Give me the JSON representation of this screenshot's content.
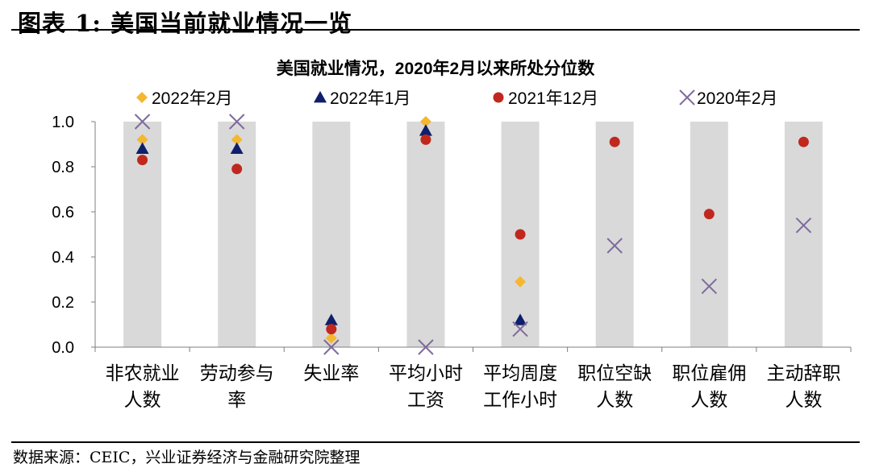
{
  "figure": {
    "title": "图表 1:  美国当前就业情况一览",
    "source": "数据来源：CEIC，兴业证券经济与金融研究院整理"
  },
  "chart_data": {
    "type": "scatter",
    "title": "美国就业情况，2020年2月以来所处分位数",
    "ylim": [
      0,
      1.0
    ],
    "yticks": [
      "1.0",
      "0.8",
      "0.6",
      "0.4",
      "0.2",
      "0.0"
    ],
    "ytick_values": [
      1.0,
      0.8,
      0.6,
      0.4,
      0.2,
      0.0
    ],
    "categories": [
      [
        "非农就业",
        "人数"
      ],
      [
        "劳动参与",
        "率"
      ],
      [
        "失业率"
      ],
      [
        "平均小时",
        "工资"
      ],
      [
        "平均周度",
        "工作小时"
      ],
      [
        "职位空缺",
        "人数"
      ],
      [
        "职位雇佣",
        "人数"
      ],
      [
        "主动辞职",
        "人数"
      ]
    ],
    "background_bars": {
      "value": 1.0,
      "color": "#d9d9d9"
    },
    "legend_position": "top",
    "grid": false,
    "series": [
      {
        "name": "2022年2月",
        "marker": "diamond",
        "color": "#f4b731",
        "values": [
          0.92,
          0.92,
          0.04,
          1.0,
          0.29,
          null,
          null,
          null
        ]
      },
      {
        "name": "2022年1月",
        "marker": "triangle",
        "color": "#0e1f6b",
        "values": [
          0.88,
          0.88,
          0.12,
          0.96,
          0.12,
          null,
          null,
          null
        ]
      },
      {
        "name": "2021年12月",
        "marker": "circle",
        "color": "#c0281e",
        "values": [
          0.83,
          0.79,
          0.08,
          0.92,
          0.5,
          0.91,
          0.59,
          0.91
        ]
      },
      {
        "name": "2020年2月",
        "marker": "x",
        "color": "#7f6b9c",
        "values": [
          1.0,
          1.0,
          0.0,
          0.0,
          0.08,
          0.45,
          0.27,
          0.54
        ]
      }
    ]
  }
}
